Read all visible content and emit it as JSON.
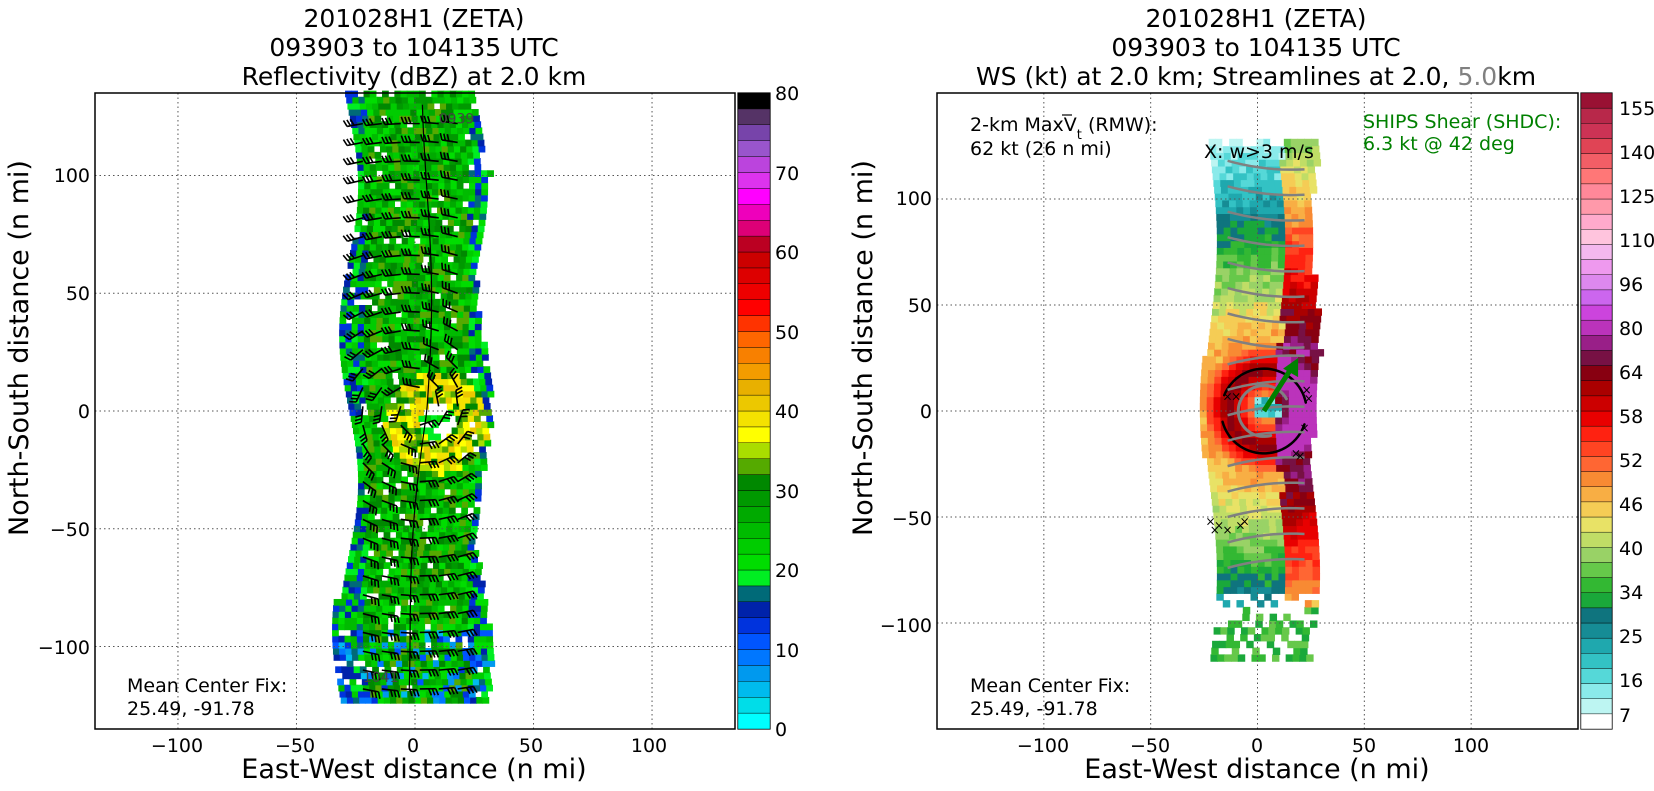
{
  "charts": [
    {
      "title_lines": [
        "201028H1 (ZETA)",
        "093903 to 104135 UTC",
        "Reflectivity (dBZ) at 2.0 km"
      ],
      "xlabel": "East-West distance (n mi)",
      "ylabel": "North-South distance (n mi)",
      "xticks": [
        "−100",
        "−50",
        "0",
        "50",
        "100"
      ],
      "yticks": [
        "100",
        "50",
        "0",
        "−50",
        "−100"
      ],
      "center_fix_label": "Mean Center Fix:",
      "center_fix_value": "25.49, -91.78",
      "time_label_top": "0939",
      "time_label_bottom": "1041",
      "colorbar_ticks": [
        "80",
        "70",
        "60",
        "50",
        "40",
        "30",
        "20",
        "10",
        "0"
      ]
    },
    {
      "title_lines": [
        "201028H1 (ZETA)",
        "093903 to 104135 UTC"
      ],
      "title_line3_a": "WS (kt) at 2.0 km; Streamlines at 2.0,",
      "title_line3_b": "5.0",
      "title_line3_c": "km",
      "xlabel": "East-West distance (n mi)",
      "ylabel": "North-South distance (n mi)",
      "xticks": [
        "−100",
        "−50",
        "0",
        "50",
        "100"
      ],
      "yticks": [
        "100",
        "50",
        "0",
        "−50",
        "−100"
      ],
      "maxvt_label_a": "2-km Max",
      "maxvt_label_b": "V",
      "maxvt_label_c": "t",
      "maxvt_label_d": "(RMW):",
      "maxvt_value": "62 kt (26 n mi)",
      "updraft_note": "X: w>3 m/s",
      "shear_label": "SHIPS Shear (SHDC):",
      "shear_value": "6.3 kt @ 42 deg",
      "center_fix_label": "Mean Center Fix:",
      "center_fix_value": "25.49, -91.78",
      "colorbar_ticks": [
        "155",
        "140",
        "125",
        "110",
        "96",
        "80",
        "64",
        "58",
        "52",
        "46",
        "40",
        "34",
        "25",
        "16",
        "7"
      ]
    }
  ],
  "chart_data": [
    {
      "type": "heatmap",
      "title": "201028H1 (ZETA) 093903 to 104135 UTC Reflectivity (dBZ) at 2.0 km",
      "xlabel": "East-West distance (n mi)",
      "ylabel": "North-South distance (n mi)",
      "xlim": [
        -135,
        135
      ],
      "ylim": [
        -135,
        135
      ],
      "grid": true,
      "colorbar_range": [
        0,
        80
      ],
      "colorbar_step": 2.5,
      "field": "radar reflectivity (dBZ), flight-track swath ~ -30..30 n mi E-W, -125..135 n mi N-S",
      "overlay": "wind barbs along flight track"
    },
    {
      "type": "heatmap",
      "title": "201028H1 (ZETA) 093903 to 104135 UTC WS (kt) at 2.0 km; Streamlines at 2.0, 5.0 km",
      "xlabel": "East-West distance (n mi)",
      "ylabel": "North-South distance (n mi)",
      "xlim": [
        -150,
        150
      ],
      "ylim": [
        -150,
        150
      ],
      "grid": true,
      "colorbar_levels": [
        7,
        16,
        25,
        34,
        40,
        46,
        52,
        58,
        64,
        80,
        96,
        110,
        125,
        140,
        155
      ],
      "max_tangential_wind_kt": 62,
      "rmw_nmi": 26,
      "ships_shear_kt": 6.3,
      "ships_shear_dir_deg": 42,
      "overlay": "streamlines at 2.0 km (black) and 5.0 km (gray); X marks w>3 m/s"
    }
  ],
  "colors": {
    "grid": "#555555",
    "shear_text": "#008000",
    "stream_5km": "#808080",
    "reflectivity_scale": [
      "#00ffff",
      "#00dde8",
      "#00bbee",
      "#0099ee",
      "#0077ff",
      "#0055ff",
      "#0033dd",
      "#0022aa",
      "#006a78",
      "#00ee22",
      "#00dd00",
      "#00cc00",
      "#00bb00",
      "#00aa00",
      "#009900",
      "#008800",
      "#55aa00",
      "#aadd00",
      "#ffff00",
      "#f4e200",
      "#ecc800",
      "#e8b000",
      "#f39c00",
      "#f88000",
      "#ff6600",
      "#ff3300",
      "#ff0000",
      "#ee0000",
      "#dd0000",
      "#cc0000",
      "#bb0022",
      "#dd0077",
      "#ee00bb",
      "#ff00ff",
      "#dd33ee",
      "#bb44dd",
      "#9955cc",
      "#7744aa",
      "#553366",
      "#000000"
    ],
    "ws_scale": [
      "#ffffff",
      "#bdf5f2",
      "#8aeaea",
      "#55d8d8",
      "#33c2c4",
      "#1fa8ae",
      "#168c95",
      "#0f747e",
      "#1aa83a",
      "#33b833",
      "#66c84a",
      "#99d266",
      "#c0dd66",
      "#e8e266",
      "#f5cc55",
      "#f8ae44",
      "#f88a33",
      "#ff6633",
      "#ff4422",
      "#ff2211",
      "#e80000",
      "#cc0000",
      "#aa0000",
      "#880011",
      "#771144",
      "#991f88",
      "#bb33bb",
      "#cc44dd",
      "#cc66ee",
      "#dd88ee",
      "#ee99ee",
      "#f4b8ee",
      "#ffc4dd",
      "#ffaacc",
      "#ff99aa",
      "#ff8899",
      "#ff7777",
      "#f25e66",
      "#e04455",
      "#cc3355",
      "#b8284a",
      "#991133"
    ]
  }
}
